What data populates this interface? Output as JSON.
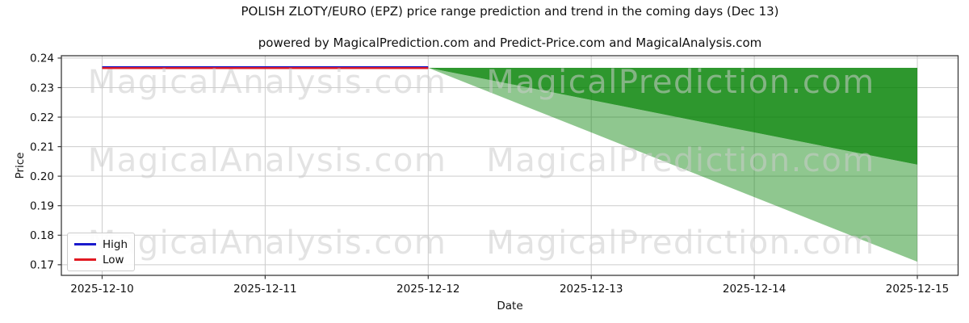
{
  "chart_data": {
    "type": "area",
    "title": "POLISH ZLOTY/EURO (EPZ) price range prediction and trend in the coming days (Dec 13)",
    "subtitle": "powered by MagicalPrediction.com and Predict-Price.com and MagicalAnalysis.com",
    "xlabel": "Date",
    "ylabel": "Price",
    "x_tick_labels": [
      "2025-12-10",
      "2025-12-11",
      "2025-12-12",
      "2025-12-13",
      "2025-12-14",
      "2025-12-15"
    ],
    "y_tick_labels": [
      "0.17",
      "0.18",
      "0.19",
      "0.20",
      "0.21",
      "0.22",
      "0.23",
      "0.24"
    ],
    "xlim_days": [
      -0.25,
      5.25
    ],
    "ylim": [
      0.1664,
      0.2408
    ],
    "grid": true,
    "legend": {
      "position": "lower left",
      "entries": [
        {
          "label": "High",
          "color_key": "high_line"
        },
        {
          "label": "Low",
          "color_key": "low_line"
        }
      ]
    },
    "colors": {
      "high_line": "#1a1acc",
      "low_line": "#e11a22",
      "band_green": "#008000",
      "grid": "#cccccc",
      "spine": "#3a3a3a",
      "watermark": "#cccccc",
      "text": "#111111"
    },
    "series": [
      {
        "name": "High",
        "color_key": "high_line",
        "x_days": [
          0,
          1,
          2
        ],
        "y": [
          0.2369,
          0.2369,
          0.2369
        ]
      },
      {
        "name": "Low",
        "color_key": "low_line",
        "x_days": [
          0,
          1,
          2
        ],
        "y": [
          0.2366,
          0.2366,
          0.2366
        ]
      }
    ],
    "prediction_bands": [
      {
        "name": "likely range",
        "opacity": 0.82,
        "x_days": [
          2,
          3,
          4,
          5
        ],
        "top": [
          0.2367,
          0.2367,
          0.2367,
          0.2367
        ],
        "bottom": [
          0.2367,
          0.2258,
          0.2148,
          0.2039
        ]
      },
      {
        "name": "full range",
        "opacity": 0.44,
        "x_days": [
          2,
          3,
          4,
          5
        ],
        "top": [
          0.2367,
          0.2258,
          0.2148,
          0.2039
        ],
        "bottom": [
          0.2367,
          0.2148,
          0.1929,
          0.171
        ]
      }
    ],
    "watermarks": {
      "texts": [
        "MagicalAnalysis.com",
        "MagicalPrediction.com"
      ],
      "rows_y": [
        101,
        198,
        300
      ],
      "cols_x": [
        331,
        843
      ]
    }
  }
}
